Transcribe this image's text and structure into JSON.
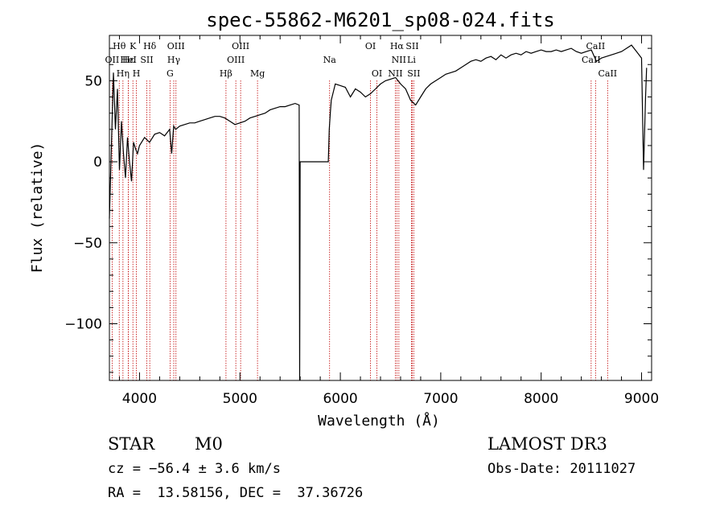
{
  "chart_data": {
    "type": "line",
    "title": "spec-55862-M6201_sp08-024.fits",
    "xlabel": "Wavelength (Å)",
    "ylabel": "Flux (relative)",
    "xlim": [
      3700,
      9100
    ],
    "ylim": [
      -135,
      78
    ],
    "x_ticks": [
      4000,
      5000,
      6000,
      7000,
      8000,
      9000
    ],
    "y_ticks": [
      -100,
      -50,
      0,
      50
    ],
    "grid": false,
    "series": [
      {
        "color": "#000000",
        "x": [
          3700,
          3720,
          3740,
          3760,
          3780,
          3800,
          3820,
          3840,
          3860,
          3880,
          3900,
          3920,
          3940,
          3960,
          3980,
          4000,
          4050,
          4100,
          4150,
          4200,
          4250,
          4300,
          4320,
          4340,
          4360,
          4400,
          4450,
          4500,
          4550,
          4600,
          4650,
          4700,
          4750,
          4800,
          4850,
          4900,
          4950,
          5000,
          5050,
          5100,
          5150,
          5200,
          5250,
          5300,
          5350,
          5400,
          5450,
          5500,
          5550,
          5590,
          5595,
          5600,
          5605,
          5800,
          5880,
          5890,
          5900,
          5910,
          5950,
          6000,
          6050,
          6100,
          6150,
          6200,
          6250,
          6300,
          6350,
          6400,
          6450,
          6500,
          6550,
          6600,
          6650,
          6700,
          6750,
          6800,
          6850,
          6900,
          6950,
          7000,
          7050,
          7100,
          7150,
          7200,
          7250,
          7300,
          7350,
          7400,
          7450,
          7500,
          7550,
          7600,
          7650,
          7700,
          7750,
          7800,
          7850,
          7900,
          7950,
          8000,
          8050,
          8100,
          8150,
          8200,
          8250,
          8300,
          8350,
          8400,
          8450,
          8500,
          8550,
          8600,
          8650,
          8700,
          8750,
          8800,
          8850,
          8900,
          8950,
          9000,
          9020,
          9040,
          9050
        ],
        "y": [
          -35,
          10,
          55,
          20,
          45,
          -5,
          25,
          5,
          -10,
          15,
          0,
          -12,
          12,
          8,
          5,
          10,
          15,
          12,
          17,
          18,
          16,
          20,
          5,
          22,
          20,
          22,
          23,
          24,
          24,
          25,
          26,
          27,
          28,
          28,
          27,
          25,
          23,
          24,
          25,
          27,
          28,
          29,
          30,
          32,
          33,
          34,
          34,
          35,
          36,
          35,
          -135,
          0,
          0,
          0,
          0,
          20,
          30,
          38,
          48,
          47,
          46,
          40,
          45,
          43,
          40,
          42,
          45,
          48,
          50,
          51,
          52,
          48,
          45,
          38,
          35,
          40,
          45,
          48,
          50,
          52,
          54,
          55,
          56,
          58,
          60,
          62,
          63,
          62,
          64,
          65,
          63,
          66,
          64,
          66,
          67,
          66,
          68,
          67,
          68,
          69,
          68,
          68,
          69,
          68,
          69,
          70,
          68,
          67,
          68,
          69,
          62,
          64,
          65,
          66,
          67,
          68,
          70,
          72,
          68,
          64,
          -5,
          40,
          58
        ]
      }
    ],
    "line_labels": [
      {
        "name": "Hθ",
        "wave": 3798,
        "row": 1
      },
      {
        "name": "OII",
        "wave": 3727,
        "row": 2
      },
      {
        "name": "K",
        "wave": 3934,
        "row": 1
      },
      {
        "name": "Hε",
        "wave": 3889,
        "row": 2
      },
      {
        "name": "Hη",
        "wave": 3835,
        "row": 3
      },
      {
        "name": "H",
        "wave": 3969,
        "row": 3
      },
      {
        "name": "HeI",
        "wave": 3889,
        "row": 2
      },
      {
        "name": "Hδ",
        "wave": 4102,
        "row": 1
      },
      {
        "name": "SII",
        "wave": 4072,
        "row": 2
      },
      {
        "name": "OIII",
        "wave": 4363,
        "row": 1
      },
      {
        "name": "Hγ",
        "wave": 4341,
        "row": 2
      },
      {
        "name": "G",
        "wave": 4304,
        "row": 3
      },
      {
        "name": "Hβ",
        "wave": 4861,
        "row": 3
      },
      {
        "name": "OIII",
        "wave": 5007,
        "row": 1
      },
      {
        "name": "OIII",
        "wave": 4959,
        "row": 2
      },
      {
        "name": "Mg",
        "wave": 5175,
        "row": 3
      },
      {
        "name": "Na",
        "wave": 5893,
        "row": 2
      },
      {
        "name": "OI",
        "wave": 6300,
        "row": 1
      },
      {
        "name": "OI",
        "wave": 6364,
        "row": 3
      },
      {
        "name": "Hα",
        "wave": 6563,
        "row": 1
      },
      {
        "name": "SII",
        "wave": 6716,
        "row": 1
      },
      {
        "name": "NII",
        "wave": 6583,
        "row": 2
      },
      {
        "name": "Li",
        "wave": 6708,
        "row": 2
      },
      {
        "name": "NII",
        "wave": 6548,
        "row": 3
      },
      {
        "name": "SII",
        "wave": 6731,
        "row": 3
      },
      {
        "name": "CaII",
        "wave": 8542,
        "row": 1
      },
      {
        "name": "CaII",
        "wave": 8498,
        "row": 2
      },
      {
        "name": "CaII",
        "wave": 8662,
        "row": 3
      }
    ],
    "line_marker_color": "#c00000"
  },
  "info": {
    "object_class": "STAR",
    "subclass": "M0",
    "survey": "LAMOST DR3",
    "cz": "cz = −56.4 ± 3.6 km/s",
    "obs_date": "Obs-Date: 20111027",
    "coords": "RA =  13.58156, DEC =  37.36726"
  }
}
